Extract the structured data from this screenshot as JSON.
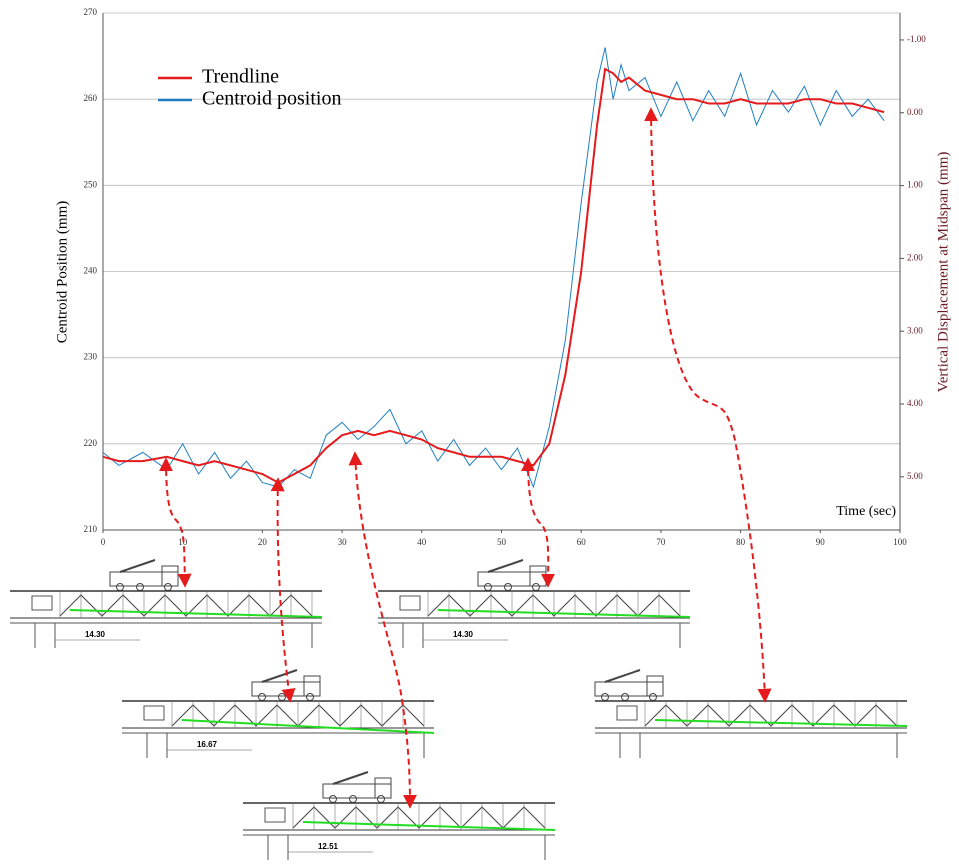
{
  "chart_data": {
    "type": "line",
    "x_label": "Time (sec)",
    "y_label": "Centroid Position (mm)",
    "y2_label": "Vertical Displacement at Midspan (mm)",
    "x": [
      0,
      2,
      5,
      8,
      10,
      12,
      14,
      16,
      18,
      20,
      22,
      24,
      26,
      28,
      30,
      32,
      34,
      36,
      38,
      40,
      42,
      44,
      46,
      48,
      50,
      52,
      54,
      56,
      58,
      60,
      62,
      63,
      64,
      65,
      66,
      68,
      70,
      72,
      74,
      76,
      78,
      80,
      82,
      84,
      86,
      88,
      90,
      92,
      94,
      96,
      98
    ],
    "series": [
      {
        "name": "Trendline",
        "color": "#e41a1c",
        "values": [
          218.5,
          218,
          218,
          218.5,
          218,
          217.5,
          218,
          217.5,
          217,
          216.5,
          215.5,
          216.5,
          217.5,
          219.5,
          221,
          221.5,
          221,
          221.5,
          221,
          220.5,
          219.5,
          219,
          218.5,
          218.5,
          218.5,
          218,
          217.5,
          220,
          228,
          240,
          257,
          263.5,
          263,
          262,
          262.5,
          261,
          260.5,
          260,
          260,
          259.5,
          259.5,
          260,
          259.5,
          259.5,
          259.5,
          260,
          260,
          259.5,
          259.5,
          259,
          258.5
        ]
      },
      {
        "name": "Centroid position",
        "color": "#1f7fc4",
        "values": [
          219,
          217.5,
          219,
          217,
          220,
          216.5,
          219,
          216,
          218,
          215.5,
          215,
          217,
          216,
          221,
          222.5,
          220.5,
          222,
          224,
          220,
          221.5,
          218,
          220.5,
          217.5,
          219.5,
          217,
          219.5,
          215,
          222,
          232,
          248,
          262,
          266,
          260,
          264,
          261,
          262.5,
          258,
          262,
          257.5,
          261,
          258,
          263,
          257,
          261,
          258.5,
          261.5,
          257,
          261,
          258,
          260,
          257.5
        ]
      }
    ],
    "xlim": [
      0,
      100
    ],
    "xticks": [
      0,
      10,
      20,
      30,
      40,
      50,
      60,
      70,
      80,
      90,
      100
    ],
    "ylim": [
      210,
      270
    ],
    "yticks": [
      210,
      220,
      230,
      240,
      250,
      260,
      270
    ],
    "y2lim": [
      5.73,
      -1.37
    ],
    "y2ticks": [
      {
        "value": -1,
        "label": "-1.00"
      },
      {
        "value": 0,
        "label": "0.00"
      },
      {
        "value": 1,
        "label": "1.00"
      },
      {
        "value": 2,
        "label": "2.00"
      },
      {
        "value": 3,
        "label": "3.00"
      },
      {
        "value": 4,
        "label": "4.00"
      },
      {
        "value": 5,
        "label": "5.00"
      }
    ],
    "grid": true,
    "legend": "upper left"
  },
  "dimension_labels": [
    "14.30",
    "14.30",
    "16.67",
    "12.51"
  ]
}
